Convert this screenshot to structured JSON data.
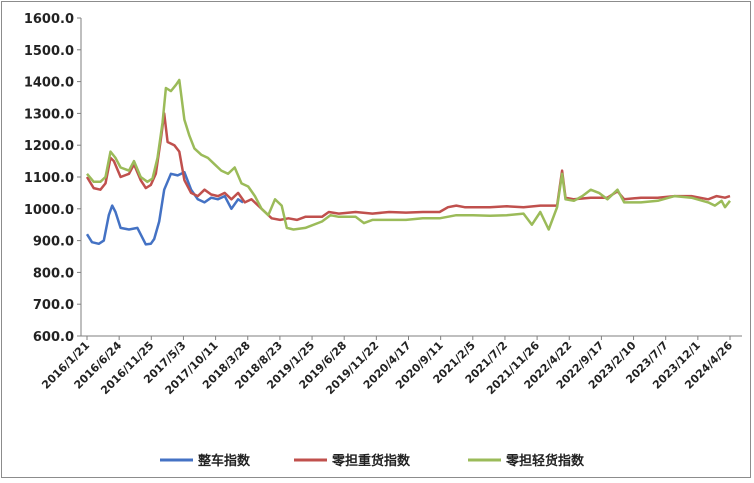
{
  "chart_data": {
    "type": "line",
    "title": "",
    "xlabel": "",
    "ylabel": "",
    "ylim": [
      600,
      1600
    ],
    "yticks": [
      "1600.0",
      "1500.0",
      "1400.0",
      "1300.0",
      "1200.0",
      "1100.0",
      "1000.0",
      "900.0",
      "800.0",
      "700.0",
      "600.0"
    ],
    "x_tick_labels": [
      "2016/1/21",
      "2016/6/24",
      "2016/11/25",
      "2017/5/3",
      "2017/10/11",
      "2018/3/28",
      "2018/8/23",
      "2019/1/25",
      "2019/6/28",
      "2019/11/22",
      "2020/4/17",
      "2020/9/11",
      "2021/2/5",
      "2021/7/2",
      "2021/11/26",
      "2022/4/22",
      "2022/9/17",
      "2023/2/10",
      "2023/7/7",
      "2023/12/1",
      "2024/4/26"
    ],
    "grid": false,
    "legend_position": "bottom",
    "series": [
      {
        "name": "整车指数",
        "color": "#4472c4",
        "points": [
          [
            0,
            920
          ],
          [
            0.3,
            895
          ],
          [
            0.7,
            890
          ],
          [
            1.0,
            900
          ],
          [
            1.3,
            980
          ],
          [
            1.5,
            1010
          ],
          [
            1.7,
            990
          ],
          [
            2.0,
            940
          ],
          [
            2.5,
            935
          ],
          [
            3.0,
            940
          ],
          [
            3.5,
            888
          ],
          [
            3.8,
            890
          ],
          [
            4.0,
            905
          ],
          [
            4.3,
            960
          ],
          [
            4.6,
            1060
          ],
          [
            5.0,
            1110
          ],
          [
            5.4,
            1105
          ],
          [
            5.8,
            1115
          ],
          [
            6.2,
            1060
          ],
          [
            6.6,
            1030
          ],
          [
            7.0,
            1020
          ],
          [
            7.4,
            1035
          ],
          [
            7.8,
            1030
          ],
          [
            8.2,
            1040
          ],
          [
            8.6,
            1000
          ],
          [
            9.0,
            1030
          ],
          [
            9.3,
            1020
          ]
        ]
      },
      {
        "name": "零担重货指数",
        "color": "#c0504d",
        "points": [
          [
            0,
            1100
          ],
          [
            0.4,
            1065
          ],
          [
            0.8,
            1060
          ],
          [
            1.1,
            1080
          ],
          [
            1.4,
            1160
          ],
          [
            1.6,
            1150
          ],
          [
            2.0,
            1100
          ],
          [
            2.5,
            1110
          ],
          [
            2.8,
            1140
          ],
          [
            3.2,
            1090
          ],
          [
            3.5,
            1065
          ],
          [
            3.8,
            1075
          ],
          [
            4.1,
            1110
          ],
          [
            4.4,
            1220
          ],
          [
            4.6,
            1300
          ],
          [
            4.8,
            1210
          ],
          [
            5.2,
            1200
          ],
          [
            5.5,
            1180
          ],
          [
            5.8,
            1090
          ],
          [
            6.2,
            1050
          ],
          [
            6.6,
            1040
          ],
          [
            7.0,
            1060
          ],
          [
            7.4,
            1045
          ],
          [
            7.8,
            1040
          ],
          [
            8.2,
            1050
          ],
          [
            8.6,
            1030
          ],
          [
            9.0,
            1050
          ],
          [
            9.4,
            1020
          ],
          [
            9.8,
            1030
          ],
          [
            10.2,
            1010
          ],
          [
            10.6,
            990
          ],
          [
            11.0,
            970
          ],
          [
            11.5,
            965
          ],
          [
            12.0,
            970
          ],
          [
            12.5,
            965
          ],
          [
            13.0,
            975
          ],
          [
            14.0,
            975
          ],
          [
            14.4,
            990
          ],
          [
            15.0,
            985
          ],
          [
            16.0,
            990
          ],
          [
            17.0,
            985
          ],
          [
            18.0,
            990
          ],
          [
            19.0,
            988
          ],
          [
            20.0,
            990
          ],
          [
            21.0,
            990
          ],
          [
            21.5,
            1005
          ],
          [
            22.0,
            1010
          ],
          [
            22.5,
            1005
          ],
          [
            24.0,
            1005
          ],
          [
            25.0,
            1008
          ],
          [
            26.0,
            1005
          ],
          [
            27.0,
            1010
          ],
          [
            28.0,
            1010
          ],
          [
            28.3,
            1120
          ],
          [
            28.5,
            1035
          ],
          [
            29.0,
            1030
          ],
          [
            30.0,
            1035
          ],
          [
            31.0,
            1035
          ],
          [
            31.6,
            1055
          ],
          [
            32.0,
            1030
          ],
          [
            33.0,
            1035
          ],
          [
            34.0,
            1035
          ],
          [
            35.0,
            1040
          ],
          [
            36.0,
            1040
          ],
          [
            37.0,
            1030
          ],
          [
            37.5,
            1040
          ],
          [
            38.0,
            1035
          ],
          [
            38.3,
            1040
          ]
        ]
      },
      {
        "name": "零担轻货指数",
        "color": "#9bbb59",
        "points": [
          [
            0,
            1110
          ],
          [
            0.4,
            1085
          ],
          [
            0.8,
            1085
          ],
          [
            1.1,
            1100
          ],
          [
            1.4,
            1180
          ],
          [
            1.7,
            1160
          ],
          [
            2.0,
            1130
          ],
          [
            2.5,
            1120
          ],
          [
            2.8,
            1150
          ],
          [
            3.2,
            1100
          ],
          [
            3.6,
            1085
          ],
          [
            3.9,
            1095
          ],
          [
            4.2,
            1160
          ],
          [
            4.5,
            1270
          ],
          [
            4.7,
            1380
          ],
          [
            5.0,
            1370
          ],
          [
            5.3,
            1390
          ],
          [
            5.5,
            1405
          ],
          [
            5.8,
            1280
          ],
          [
            6.1,
            1230
          ],
          [
            6.4,
            1190
          ],
          [
            6.8,
            1170
          ],
          [
            7.2,
            1160
          ],
          [
            7.6,
            1140
          ],
          [
            8.0,
            1120
          ],
          [
            8.4,
            1110
          ],
          [
            8.8,
            1130
          ],
          [
            9.2,
            1080
          ],
          [
            9.6,
            1070
          ],
          [
            10.0,
            1040
          ],
          [
            10.4,
            1000
          ],
          [
            10.8,
            980
          ],
          [
            11.2,
            1030
          ],
          [
            11.6,
            1010
          ],
          [
            11.9,
            940
          ],
          [
            12.3,
            935
          ],
          [
            13.0,
            940
          ],
          [
            14.0,
            960
          ],
          [
            14.5,
            980
          ],
          [
            15.0,
            975
          ],
          [
            16.0,
            975
          ],
          [
            16.5,
            955
          ],
          [
            17.0,
            965
          ],
          [
            18.0,
            965
          ],
          [
            19.0,
            965
          ],
          [
            20.0,
            970
          ],
          [
            21.0,
            970
          ],
          [
            22.0,
            980
          ],
          [
            23.0,
            980
          ],
          [
            24.0,
            978
          ],
          [
            25.0,
            980
          ],
          [
            26.0,
            985
          ],
          [
            26.5,
            950
          ],
          [
            27.0,
            990
          ],
          [
            27.5,
            935
          ],
          [
            28.0,
            1005
          ],
          [
            28.3,
            1110
          ],
          [
            28.5,
            1030
          ],
          [
            29.0,
            1025
          ],
          [
            29.5,
            1040
          ],
          [
            30.0,
            1060
          ],
          [
            30.5,
            1050
          ],
          [
            31.0,
            1030
          ],
          [
            31.6,
            1060
          ],
          [
            32.0,
            1020
          ],
          [
            33.0,
            1020
          ],
          [
            34.0,
            1025
          ],
          [
            35.0,
            1040
          ],
          [
            36.0,
            1035
          ],
          [
            37.0,
            1020
          ],
          [
            37.4,
            1010
          ],
          [
            37.8,
            1025
          ],
          [
            38.0,
            1005
          ],
          [
            38.3,
            1025
          ]
        ]
      }
    ]
  }
}
